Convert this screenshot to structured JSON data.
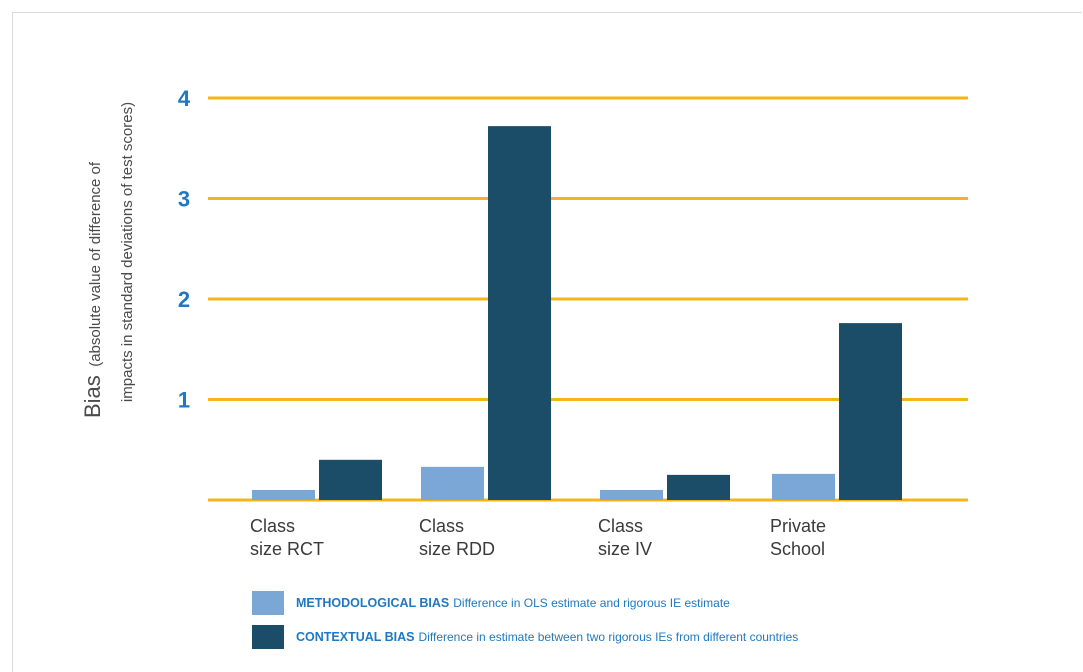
{
  "chart_data": {
    "type": "bar",
    "categories": [
      [
        "Class",
        "size RCT"
      ],
      [
        "Class",
        "size RDD"
      ],
      [
        "Class",
        "size IV"
      ],
      [
        "Private",
        "School"
      ]
    ],
    "series": [
      {
        "name": "METHODOLOGICAL BIAS",
        "description": "Difference in OLS estimate and rigorous IE estimate",
        "values": [
          0.1,
          0.33,
          0.1,
          0.26
        ],
        "color": "#7ba7d7"
      },
      {
        "name": "CONTEXTUAL BIAS",
        "description": "Difference in estimate between two rigorous IEs from different countries",
        "values": [
          0.4,
          3.72,
          0.25,
          1.76
        ],
        "color": "#1b4d68"
      }
    ],
    "ylabel_main": "Bias",
    "ylabel_line1": "(absolute value of difference of",
    "ylabel_line2": "impacts in standard deviations of test scores)",
    "yticks": [
      1,
      2,
      3,
      4
    ],
    "ylim": [
      0,
      4
    ],
    "grid": true,
    "grid_color": "#f5b41a",
    "tick_color": "#1f78c1",
    "legend_position": "bottom"
  }
}
